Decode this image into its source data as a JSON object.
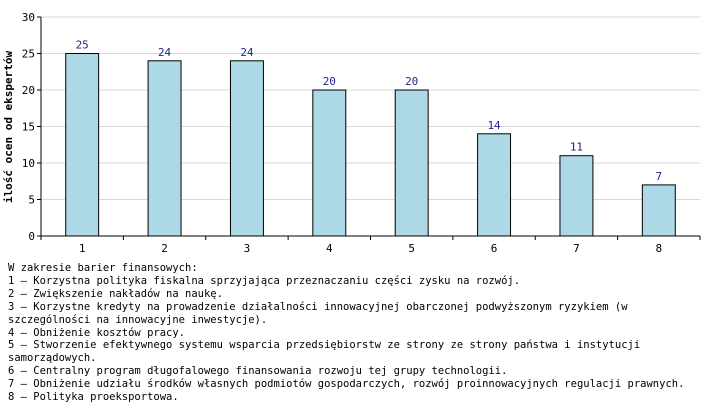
{
  "chart_data": {
    "type": "bar",
    "categories": [
      "1",
      "2",
      "3",
      "4",
      "5",
      "6",
      "7",
      "8"
    ],
    "values": [
      25,
      24,
      24,
      20,
      20,
      14,
      11,
      7
    ],
    "ylabel": "ilość ocen od ekspertów",
    "xlabel": "",
    "ylim": [
      0,
      30
    ],
    "yticks": [
      0,
      5,
      10,
      15,
      20,
      25,
      30
    ],
    "grid": true,
    "bar_color": "#add8e6",
    "label_color": "#1f1f8f"
  },
  "notes": {
    "heading": "W zakresie barier finansowych:",
    "items": [
      "1 – Korzystna polityka fiskalna sprzyjająca przeznaczaniu części zysku na rozwój.",
      "2 – Zwiększenie nakładów na naukę.",
      "3 – Korzystne kredyty na prowadzenie działalności innowacyjnej obarczonej podwyższonym ryzykiem (w szczególności na innowacyjne inwestycje).",
      "4 – Obniżenie kosztów pracy.",
      "5 – Stworzenie efektywnego systemu wsparcia przedsiębiorstw ze strony ze strony państwa i instytucji samorządowych.",
      "6 – Centralny program długofalowego finansowania rozwoju tej grupy technologii.",
      "7 – Obniżenie udziału środków własnych podmiotów gospodarczych, rozwój proinnowacyjnych regulacji prawnych.",
      "8 – Polityka proeksportowa."
    ]
  }
}
